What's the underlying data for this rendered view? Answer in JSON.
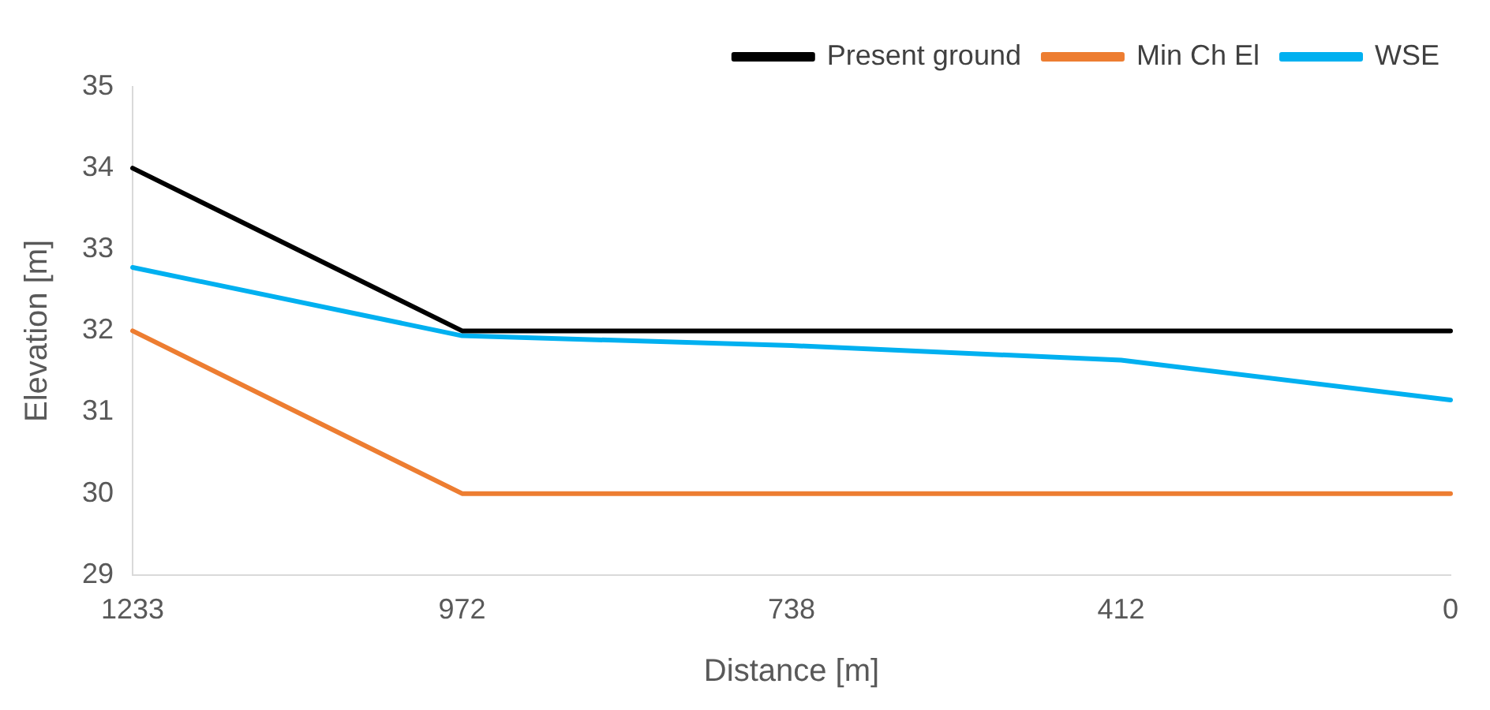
{
  "chart_data": {
    "type": "line",
    "xlabel": "Distance [m]",
    "ylabel": "Elevation [m]",
    "categories": [
      "1233",
      "972",
      "738",
      "412",
      "0"
    ],
    "series": [
      {
        "name": "Present ground",
        "color": "#000000",
        "values": [
          34,
          32,
          32,
          32,
          32
        ]
      },
      {
        "name": "Min Ch El",
        "color": "#ed7d31",
        "values": [
          32,
          30,
          30,
          30,
          30
        ]
      },
      {
        "name": "WSE",
        "color": "#00b0f0",
        "values": [
          32.78,
          31.94,
          31.82,
          31.64,
          31.15
        ]
      }
    ],
    "ylim": [
      29,
      35
    ],
    "yticks": [
      29,
      30,
      31,
      32,
      33,
      34,
      35
    ],
    "grid": false,
    "legend": "top right",
    "marker": "none",
    "line_style": "solid"
  }
}
